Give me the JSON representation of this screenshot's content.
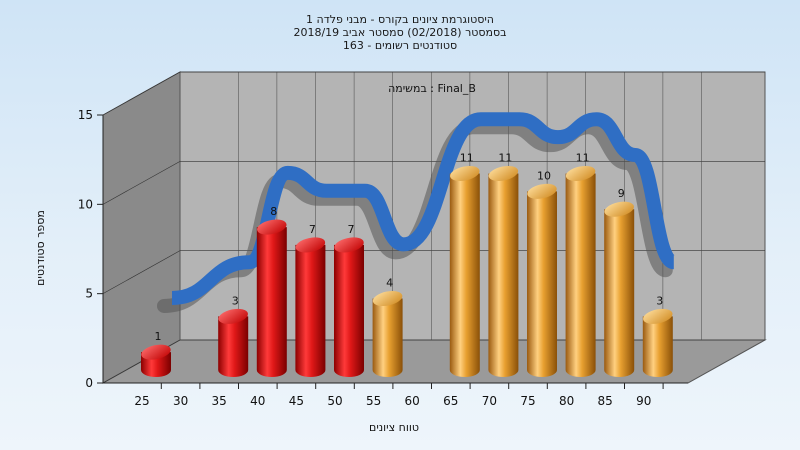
{
  "titles": [
    "היסטוגרמת ציונים בקורס - מבני פלדה 1",
    "בסמסטר  (02/2018)  סמסטר אביב 2018/19",
    "סטודנטים רשומים - 163"
  ],
  "legend": "במשימה : Final_B",
  "colors": {
    "fail": "#e01818",
    "pass": "#e8a030",
    "curve": "#2f6ec4",
    "backWall": "#b4b4b4",
    "sideWall": "#8a8a8a",
    "floor": "#9a9a9a"
  },
  "chart_data": {
    "type": "bar",
    "xlabel": "טווח ציונים",
    "ylabel": "מספר סטודנטים",
    "ylim": [
      0,
      15
    ],
    "yticks": [
      0,
      5,
      10,
      15
    ],
    "xticks": [
      "25",
      "30",
      "35",
      "40",
      "45",
      "50",
      "55",
      "60",
      "65",
      "70",
      "75",
      "80",
      "85",
      "90"
    ],
    "categories": [
      "25",
      "35",
      "40",
      "45",
      "50",
      "55",
      "65",
      "70",
      "75",
      "80",
      "85",
      "90"
    ],
    "values": [
      1,
      3,
      8,
      7,
      7,
      4,
      11,
      11,
      10,
      11,
      9,
      3
    ],
    "bar_color_groups": [
      "fail",
      "fail",
      "fail",
      "fail",
      "fail",
      "pass",
      "pass",
      "pass",
      "pass",
      "pass",
      "pass",
      "pass"
    ],
    "grid": true
  }
}
